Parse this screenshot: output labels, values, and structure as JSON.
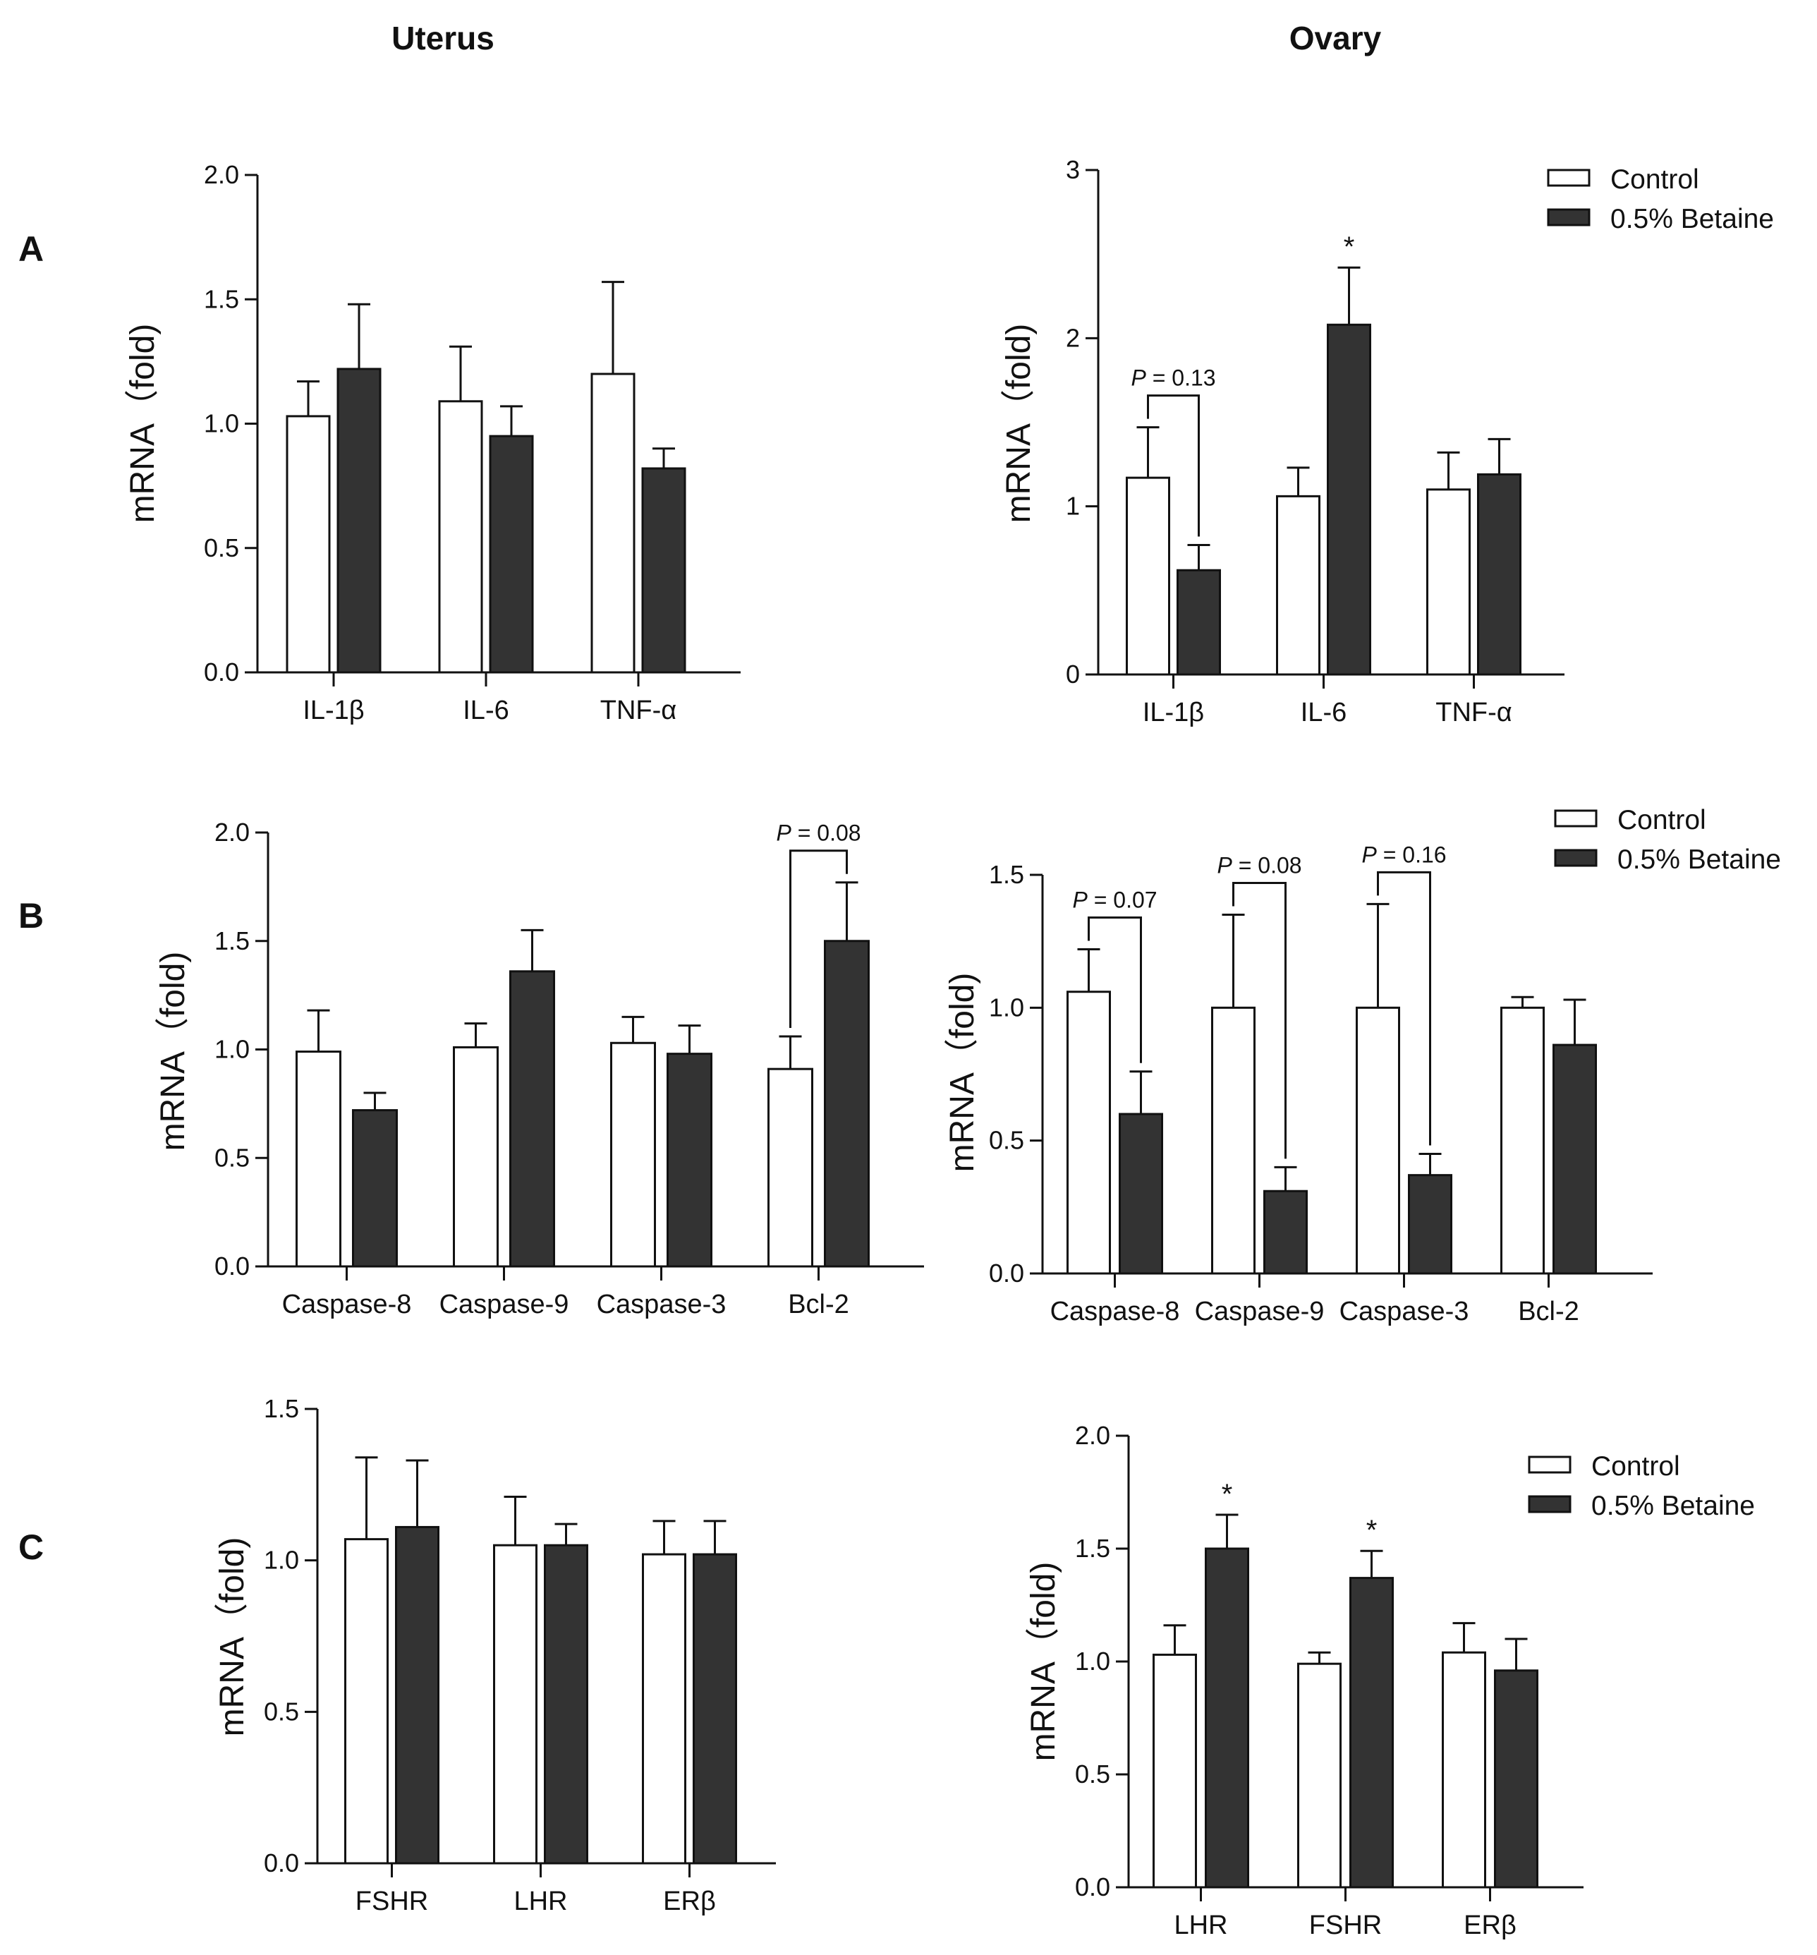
{
  "figure": {
    "column_titles": [
      "Uterus",
      "Ovary"
    ],
    "panel_labels": [
      "A",
      "B",
      "C"
    ],
    "colors": {
      "control_fill": "#ffffff",
      "betaine_fill": "#333333",
      "stroke": "#111111"
    }
  },
  "chart_data": [
    {
      "id": "A-uterus",
      "type": "bar",
      "panel": "A",
      "tissue": "Uterus",
      "ylabel": "mRNA（fold)",
      "ylim": [
        0,
        2.0
      ],
      "yticks": [
        "0.0",
        "0.5",
        "1.0",
        "1.5",
        "2.0"
      ],
      "categories": [
        "IL-1β",
        "IL-6",
        "TNF-α"
      ],
      "series": [
        {
          "name": "Control",
          "values": [
            1.03,
            1.09,
            1.2
          ],
          "errors": [
            0.14,
            0.22,
            0.37
          ]
        },
        {
          "name": "0.5% Betaine",
          "values": [
            1.22,
            0.95,
            0.82
          ],
          "errors": [
            0.26,
            0.12,
            0.08
          ]
        }
      ],
      "annotations": [],
      "stars": []
    },
    {
      "id": "A-ovary",
      "type": "bar",
      "panel": "A",
      "tissue": "Ovary",
      "ylabel": "mRNA（fold)",
      "ylim": [
        0,
        3
      ],
      "yticks": [
        "0",
        "1",
        "2",
        "3"
      ],
      "categories": [
        "IL-1β",
        "IL-6",
        "TNF-α"
      ],
      "series": [
        {
          "name": "Control",
          "values": [
            1.17,
            1.06,
            1.1
          ],
          "errors": [
            0.3,
            0.17,
            0.22
          ]
        },
        {
          "name": "0.5% Betaine",
          "values": [
            0.62,
            2.08,
            1.19
          ],
          "errors": [
            0.15,
            0.34,
            0.21
          ]
        }
      ],
      "legend": [
        "Control",
        "0.5% Betaine"
      ],
      "annotations": [
        {
          "p": "P",
          "text": " = 0.13",
          "category": 0
        }
      ],
      "stars": [
        {
          "text": "*",
          "category": 1,
          "series": 1
        }
      ]
    },
    {
      "id": "B-uterus",
      "type": "bar",
      "panel": "B",
      "tissue": "Uterus",
      "ylabel": "mRNA（fold)",
      "ylim": [
        0,
        2.0
      ],
      "yticks": [
        "0.0",
        "0.5",
        "1.0",
        "1.5",
        "2.0"
      ],
      "categories": [
        "Caspase-8",
        "Caspase-9",
        "Caspase-3",
        "Bcl-2"
      ],
      "series": [
        {
          "name": "Control",
          "values": [
            0.99,
            1.01,
            1.03,
            0.91
          ],
          "errors": [
            0.19,
            0.11,
            0.12,
            0.15
          ]
        },
        {
          "name": "0.5% Betaine",
          "values": [
            0.72,
            1.36,
            0.98,
            1.5
          ],
          "errors": [
            0.08,
            0.19,
            0.13,
            0.27
          ]
        }
      ],
      "annotations": [
        {
          "p": "P",
          "text": " = 0.08",
          "category": 3
        }
      ],
      "stars": []
    },
    {
      "id": "B-ovary",
      "type": "bar",
      "panel": "B",
      "tissue": "Ovary",
      "ylabel": "mRNA（fold)",
      "ylim": [
        0,
        1.5
      ],
      "yticks": [
        "0.0",
        "0.5",
        "1.0",
        "1.5"
      ],
      "categories": [
        "Caspase-8",
        "Caspase-9",
        "Caspase-3",
        "Bcl-2"
      ],
      "series": [
        {
          "name": "Control",
          "values": [
            1.06,
            1.0,
            1.0,
            1.0
          ],
          "errors": [
            0.16,
            0.35,
            0.39,
            0.04
          ]
        },
        {
          "name": "0.5% Betaine",
          "values": [
            0.6,
            0.31,
            0.37,
            0.86
          ],
          "errors": [
            0.16,
            0.09,
            0.08,
            0.17
          ]
        }
      ],
      "legend": [
        "Control",
        "0.5% Betaine"
      ],
      "annotations": [
        {
          "p": "P",
          "text": " = 0.07",
          "category": 0
        },
        {
          "p": "P",
          "text": " = 0.08",
          "category": 1
        },
        {
          "p": "P",
          "text": " = 0.16",
          "category": 2
        }
      ],
      "stars": []
    },
    {
      "id": "C-uterus",
      "type": "bar",
      "panel": "C",
      "tissue": "Uterus",
      "ylabel": "mRNA（fold)",
      "ylim": [
        0,
        1.5
      ],
      "yticks": [
        "0.0",
        "0.5",
        "1.0",
        "1.5"
      ],
      "categories": [
        "FSHR",
        "LHR",
        "ERβ"
      ],
      "series": [
        {
          "name": "Control",
          "values": [
            1.07,
            1.05,
            1.02
          ],
          "errors": [
            0.27,
            0.16,
            0.11
          ]
        },
        {
          "name": "0.5% Betaine",
          "values": [
            1.11,
            1.05,
            1.02
          ],
          "errors": [
            0.22,
            0.07,
            0.11
          ]
        }
      ],
      "annotations": [],
      "stars": []
    },
    {
      "id": "C-ovary",
      "type": "bar",
      "panel": "C",
      "tissue": "Ovary",
      "ylabel": "mRNA（fold)",
      "ylim": [
        0,
        2.0
      ],
      "yticks": [
        "0.0",
        "0.5",
        "1.0",
        "1.5",
        "2.0"
      ],
      "categories": [
        "LHR",
        "FSHR",
        "ERβ"
      ],
      "series": [
        {
          "name": "Control",
          "values": [
            1.03,
            0.99,
            1.04
          ],
          "errors": [
            0.13,
            0.05,
            0.13
          ]
        },
        {
          "name": "0.5% Betaine",
          "values": [
            1.5,
            1.37,
            0.96
          ],
          "errors": [
            0.15,
            0.12,
            0.14
          ]
        }
      ],
      "legend": [
        "Control",
        "0.5% Betaine"
      ],
      "annotations": [],
      "stars": [
        {
          "text": "*",
          "category": 0,
          "series": 1
        },
        {
          "text": "*",
          "category": 1,
          "series": 1
        }
      ]
    }
  ]
}
